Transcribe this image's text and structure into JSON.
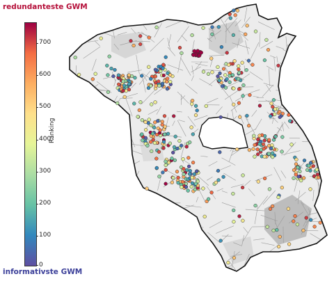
{
  "legend": {
    "top_label": "redundanteste GWM",
    "bottom_label": "informativste GWM",
    "axis_label": "Ranking",
    "ticks": [
      "700",
      "600",
      "500",
      "400",
      "300",
      "200",
      "100",
      "0"
    ],
    "range": [
      0,
      750
    ],
    "colormap": "Spectral_r",
    "colors": {
      "top_label": "#b5103a",
      "bottom_label": "#3b3f99",
      "high": "#9e0142",
      "low": "#5e4fa2"
    }
  },
  "map": {
    "region_fill": "#eaeaea",
    "cell_line_color": "#9a9a9a",
    "outline_color": "#111111",
    "point_count_shown": 750
  }
}
